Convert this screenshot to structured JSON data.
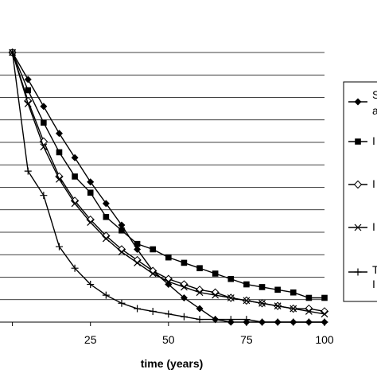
{
  "chart_data": {
    "type": "line",
    "title": "",
    "xlabel": "time (years)",
    "ylabel": "",
    "xlim": [
      -5,
      100
    ],
    "ylim": [
      0,
      100
    ],
    "x_ticks": [
      25,
      50,
      75,
      100
    ],
    "grid": true,
    "legend_position": "right",
    "series": [
      {
        "name": "",
        "marker": "diamond",
        "x": [
          0,
          5,
          10,
          15,
          20,
          25,
          30,
          35,
          40,
          45,
          50,
          55,
          60,
          65,
          70,
          75,
          80,
          85,
          90,
          95,
          100
        ],
        "y": [
          100,
          90,
          80,
          70,
          61,
          52,
          44,
          36,
          27,
          19,
          14,
          9,
          5,
          1,
          0,
          0,
          0,
          0,
          0,
          0,
          0
        ]
      },
      {
        "name": "",
        "marker": "square",
        "x": [
          0,
          5,
          10,
          15,
          20,
          25,
          30,
          35,
          40,
          45,
          50,
          55,
          60,
          65,
          70,
          75,
          80,
          85,
          90,
          95,
          100
        ],
        "y": [
          100,
          86,
          74,
          63,
          54,
          48,
          39,
          34,
          29,
          27,
          24,
          22,
          20,
          18,
          16,
          14,
          13,
          12,
          11,
          9,
          9
        ]
      },
      {
        "name": "",
        "marker": "open-diamond",
        "x": [
          0,
          5,
          10,
          15,
          20,
          25,
          30,
          35,
          40,
          45,
          50,
          55,
          60,
          65,
          70,
          75,
          80,
          85,
          90,
          95,
          100
        ],
        "y": [
          100,
          82,
          67,
          54,
          45,
          38,
          32,
          27,
          23,
          19,
          16,
          14,
          12,
          11,
          9,
          8,
          7,
          6,
          5,
          5,
          4
        ]
      },
      {
        "name": "",
        "marker": "x",
        "x": [
          0,
          5,
          10,
          15,
          20,
          25,
          30,
          35,
          40,
          45,
          50,
          55,
          60,
          65,
          70,
          75,
          80,
          85,
          90,
          95,
          100
        ],
        "y": [
          100,
          81,
          65,
          53,
          44,
          37,
          31,
          26,
          22,
          18,
          15,
          13,
          11,
          10,
          9,
          8,
          7,
          6,
          5,
          4,
          3
        ]
      },
      {
        "name": "",
        "marker": "plus",
        "x": [
          0,
          5,
          10,
          15,
          20,
          25,
          30,
          35,
          40,
          45,
          50,
          55,
          60,
          65,
          70,
          75,
          80,
          85,
          90,
          95,
          100
        ],
        "y": [
          100,
          56,
          47,
          28,
          20,
          14,
          10,
          7,
          5,
          4,
          3,
          2,
          1,
          1,
          1,
          1,
          0,
          0,
          0,
          0,
          0
        ]
      }
    ],
    "legend_fragments": [
      "S",
      "a",
      "I",
      "I",
      "I",
      "I",
      "T",
      "I"
    ]
  }
}
